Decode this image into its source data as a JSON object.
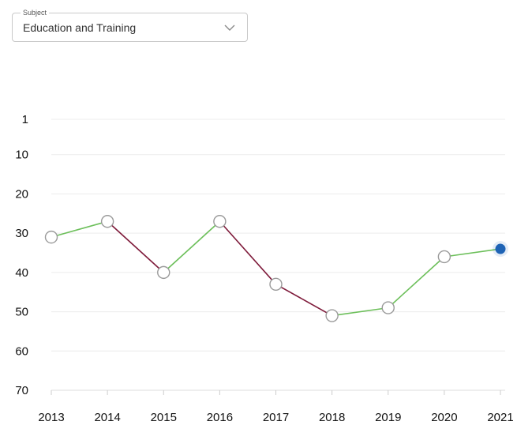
{
  "subject_select": {
    "label": "Subject",
    "value": "Education and Training",
    "icon": "chevron-down-icon"
  },
  "colors": {
    "rise": "#6cbf5a",
    "fall": "#7e1a3a",
    "current_point": "#1e63b5",
    "grid": "#ececec"
  },
  "chart_data": {
    "type": "line",
    "x": [
      "2013",
      "2014",
      "2015",
      "2016",
      "2017",
      "2018",
      "2019",
      "2020",
      "2021"
    ],
    "y_ticks": [
      1,
      10,
      20,
      30,
      40,
      50,
      60,
      70
    ],
    "ylim": [
      1,
      70
    ],
    "y_inverted": true,
    "grid": true,
    "series": [
      {
        "values": [
          31,
          27,
          40,
          27,
          43,
          51,
          49,
          36,
          34
        ]
      }
    ],
    "highlighted_point_index": 8,
    "title": "",
    "xlabel": "",
    "ylabel": ""
  }
}
